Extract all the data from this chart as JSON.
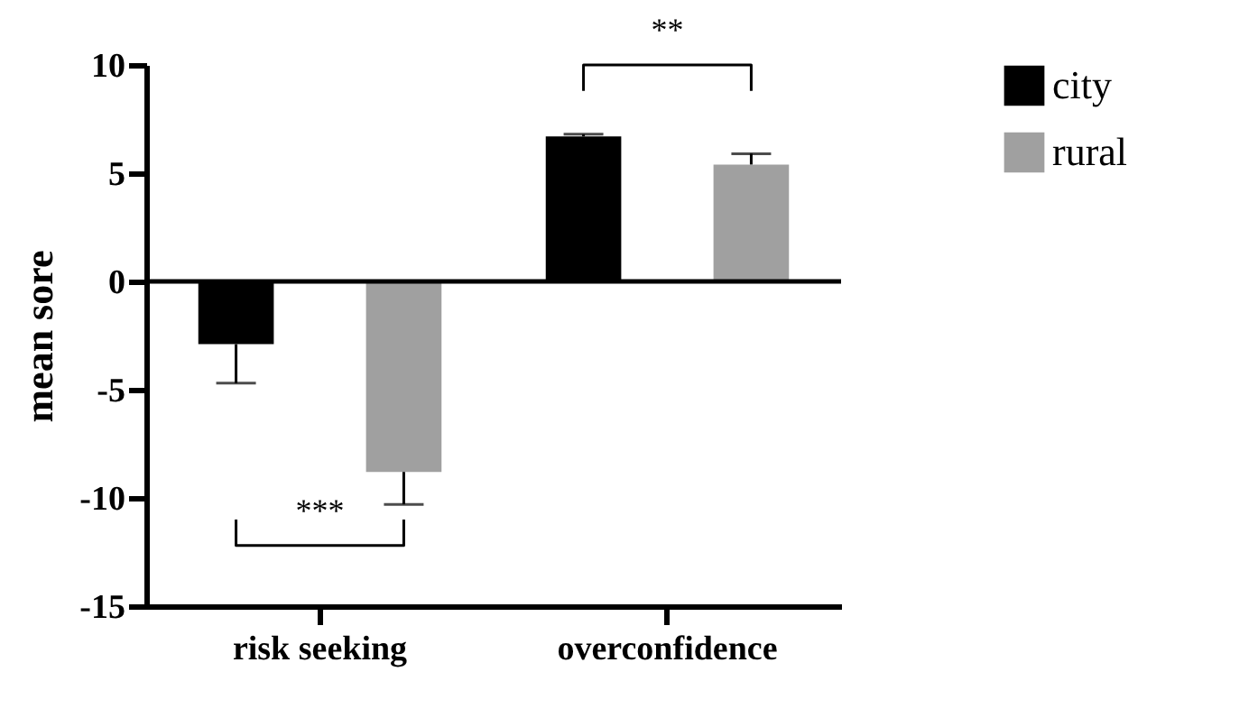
{
  "chart_data": {
    "type": "bar",
    "ylabel": "mean sore",
    "categories": [
      "risk seeking",
      "overconfidence"
    ],
    "series": [
      {
        "name": "city",
        "color": "#000000",
        "values": [
          -2.9,
          6.7
        ],
        "errors": [
          [
            -4.7,
            -2.9
          ],
          [
            6.7,
            6.8
          ]
        ]
      },
      {
        "name": "rural",
        "color": "#a0a0a0",
        "values": [
          -8.8,
          5.4
        ],
        "errors": [
          [
            -10.3,
            -8.8
          ],
          [
            5.4,
            5.9
          ]
        ]
      }
    ],
    "ylim": [
      -15,
      10
    ],
    "yticks": [
      -15,
      -10,
      -5,
      0,
      5,
      10
    ],
    "grid": false,
    "legend": "top right",
    "ref_lines": [
      {
        "axis": "y",
        "value": 0
      }
    ],
    "annotations": [
      "***",
      "**"
    ]
  }
}
